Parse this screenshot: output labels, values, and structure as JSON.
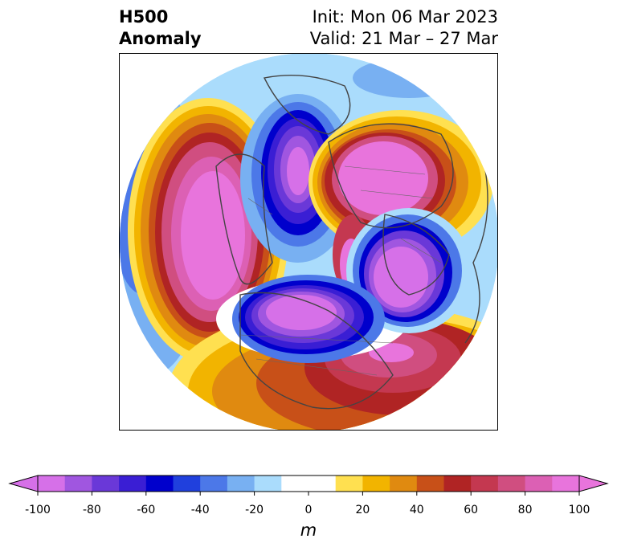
{
  "title": {
    "left_line1": "H500",
    "left_line2": "Anomaly",
    "right_line1": "Init: Mon 06 Mar 2023",
    "right_line2": "Valid: 21 Mar – 27 Mar"
  },
  "colorbar": {
    "label": "m",
    "ticks": [
      "-100",
      "-80",
      "-60",
      "-40",
      "-20",
      "0",
      "20",
      "40",
      "60",
      "80",
      "100"
    ],
    "colors": [
      "#d670e8",
      "#a056e0",
      "#6a38d8",
      "#3a1ed4",
      "#0000cc",
      "#2040dd",
      "#4c78e8",
      "#78b0f2",
      "#aadcfc",
      "#ffffff",
      "#ffffff",
      "#ffe050",
      "#f2b400",
      "#e08a10",
      "#c85018",
      "#b02424",
      "#c43850",
      "#d04e80",
      "#dc60b4",
      "#e874dc"
    ],
    "under_color": "#d670e8",
    "over_color": "#e874dc"
  },
  "map": {
    "projection": "north-polar-stereographic",
    "anomaly_centers": [
      {
        "sign": "positive",
        "magnitude": 100
      },
      {
        "sign": "negative",
        "magnitude": -100
      },
      {
        "sign": "positive",
        "magnitude": 100
      },
      {
        "sign": "negative",
        "magnitude": -100
      },
      {
        "sign": "negative",
        "magnitude": -100
      },
      {
        "sign": "positive",
        "magnitude": 90
      }
    ]
  }
}
